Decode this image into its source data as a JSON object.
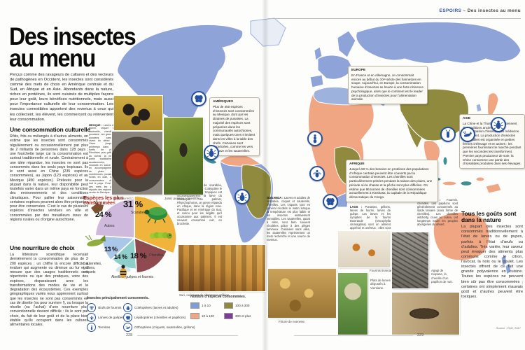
{
  "header": {
    "section": "ESPOIRS",
    "rest": " – Des insectes au menu"
  },
  "page": {
    "left_number": "228",
    "right_number": "229",
    "source": "Source : FAO, 2017"
  },
  "article": {
    "title_line1": "Des insectes",
    "title_line2": "au menu",
    "intro": "Perçus comme des ravageurs de cultures et des vecteurs de pathogènes en Occident, les insectes sont considérés comme des mets de choix en Amérique centrale et du Sud, en Afrique et en Asie. Abondants dans la nature, riches en protéines, ils sont cuisinés de multiples façons pour leur goût, leurs bénéfices nutritionnels, mais aussi pour l’importance culturelle de leur consommation. Les insectes comestibles apportent des revenus à ceux qui les collectent, les élèvent, les commercent ou réinventent leur consommation.",
    "sections": [
      {
        "heading": "Une consommation culturelle",
        "body": "Rôtis, frits ou mélangés à d’autres aliments, on estime que les insectes sont consommés régulièrement ou occasionnellement par plus de 2 milliards de personnes dans 128 pays ; une fourchette large car la consommation est surtout traditionnelle et rurale. Contrairement à une idée répandue, les insectes ne sont pas consommés dans les seuls pays tropicaux. Ils le sont aussi en Chine (235 espèces consommées), au Japon (123 espèces) et au Mexique (450 espèces). Prélevés pour la plupart dans la nature, leur disponibilité peut toutefois varier dans un même pays en fonction des environnements et des conditions climatiques. Pour pallier leur saisonnalité, certaines espèces peuvent alors être préparées pour être conservées. C’est le cas de plusieurs espèces d’insectes vendues en ville et consommées par des travailleurs issus de régions rurales ou d’origine autochtone."
      },
      {
        "heading": "Une nourriture de choix",
        "body": "La littérature scientifique recensait dernièrement la consommation de plus de 2 200 espèces ; un chiffre là encore difficile à évaluer qui augmente ou diminue au fur et à mesure que des usages traditionnels sont répertoriés ou que des pratiques, voire des espèces, disparaissent avec les transformations des modes de vie et la dégradation des écosystèmes. Ces exemples géographiques variés nous apprennent surtout que les insectes ne sont pas consommés en cas de disette (ou pour survivre !), ou lorsque la récolte (ou l’achat) d’une nourriture plus conventionnelle devient difficile : ils le sont par choix, du fait de leur goût et de la place bien établie qu’ils occupent dans les cultures alimentaires locales."
      }
    ]
  },
  "callouts": {
    "ameriques": {
      "title": "AMÉRIQUES",
      "body": "Plus de 450 espèces d’insectes sont consommées au Mexique, dont par les dizaines de punaises. La majorité des espèces sont préparées dans les communautés autochtones, mais quelques-unes s’invitent dans les villes à la table des chefs. Certaines sont appréciées, comme les vers d’agave et les sauterelles."
    },
    "europe": {
      "title": "EUROPE",
      "body": "En France et en Allemagne, on consommait encore au début du XXᵉ siècle des hannetons en soupe. Aujourd’hui, en Europe, la consommation humaine d’insectes se heurte à une forte réticence psychologique, alors que le continent est le leader de la production d’insectes pour l’alimentation animale."
    },
    "asie": {
      "title": "ASIE",
      "body": "La Chine et la Thaïlande maintiennent des traditions anciennes de consommation d’insectes, en médecine notamment. La production d’insectes comestibles est organisée en petites fermes d’élevage et en usines : les premières fournissant le marché pendant que les secondes les transforment. Premier pays producteur de soie, la Chine consomme une partie des chrysalides produites dans ses élevages."
    },
    "afrique": {
      "title": "AFRIQUE",
      "body": "Jusqu’à 50 % des besoins en protéines des populations d’Afrique centrale peuvent être couverts par la consommation d’insectes. Les chenilles sont particulièrement prisées pendant la saison des pluies, une période où la chasse et la pêche sont plus difficiles. On estime que 96 tonnes de chenilles sont consommées annuellement à Kinshasa, la capitale de la République démocratique du Congo."
    }
  },
  "country_notes": {
    "mexique": {
      "title": "MEXIQUE :",
      "body": "Larves de fourmi, criquet et sauterelle, chenilles, punaises. Les grandes punaises xamues vivent du début de l’hiver jusqu’au printemps dans les forêts de pins. Récoltées puis grillées au comal, la petite poêle traditionnelle, assaisonnées, moulues en sauce ou en accompagnement de plats, ces nombreuses punaises, riches en iode, sont consommées dans tout le pays. C’est un des mets les plus réputés des régions du centre du Mexique."
    },
    "perou": {
      "title": "PÉROU :",
      "body": "Larves de scarabée, chenilles, fourmis. Le Coléoptère le plus consommé des tropiques est incontestablement la larve du charançon du palmier, Rhynchophorus, un genre répandu en Afrique, dans la région Asie-Pacifique et en Amérique du Sud, et connu pour les dégâts qu’il occasionne aux palmiers. Il est souvent consommé cuit, en brochette."
    },
    "ouganda": {
      "title": "OUGANDA :",
      "body": "Larves et adultes de scarabée, criquet et sauterelle, chenilles. Les criquets sont en général récoltés le matin lorsque la température est plus faible et les insectes relativement immobiles. Les sauterelles, quant à elles, sont bien souvent récoltées grâce à des pièges lumineux. Cuisinées sans ailes, les sauterelles représentent un mets recherché et une source de revenus."
    },
    "laos": {
      "title": "LAOS :",
      "body": "Punaises, grillons, larves de fourmi, larves de guêpe. Les larves et les nymphes de la fourmi tisserande (Oecophylla smaragdina) sont un aliment apprécié et onéreux : elles sont saisonnières et le pays les exporte en faibles quantités."
    },
    "australie": {
      "title": "AUSTRALIE :",
      "body": "Fourmis, chenilles. Les papillons sont généralement consommés au stade larvaire (sous forme de chenilles). Les chenilles witchetty, crues ou cuites, ont longtemps nourri les peuples aborigènes du désert."
    }
  },
  "sidebar": {
    "heading": "Tous les goûts sont dans la nature",
    "body": "La plupart des insectes sont consommés traditionnellement à l’état de larves ou de pupes, parfois à l’état d’œufs ou d’adultes. Très variée, leur saveur peut évoquer des aliments plus communs comme le citron, l’avocat, la noix ou le poulet. Les insectes offrent de ce fait une grande polyvalence en cuisine. Toutes les espèces ne peuvent bien sûr pas être consommées ; certaines ont simplement mauvais goût et d’autres peuvent être toxiques."
  },
  "photo_captions": {
    "molcajete": "Salsa en préparation.",
    "jumil": "Jumil, punaise comestible.",
    "suri": "Suri, ou larves de charançon grillées.",
    "nsenene": "Friture de nsenene.",
    "fourmis": "Fourmis tisserandes.",
    "plats": "Plats de larves dégustés à Vientiane.",
    "mopane": "Agagi de mopane, la chenille d’un papillon de nuit."
  },
  "chart_data": {
    "type": "pie",
    "title": "Espèces les plus consommées",
    "unit": "%",
    "slices": [
      {
        "label": "Scarabées",
        "value": 31,
        "pct": "31 %",
        "color": "#f0b43c"
      },
      {
        "label": "Chenilles",
        "value": 18,
        "pct": "18 %",
        "color": "#8e4a4f"
      },
      {
        "label": "Abeilles, guêpes et fourmis",
        "value": 14,
        "pct": "14 %",
        "color": "#8ecfcb"
      },
      {
        "label": "Sauterelles, grillons, criquets",
        "value": 13,
        "pct": "13 %",
        "color": "#a9c7e8"
      },
      {
        "label": "Autres",
        "value": 24,
        "pct": "24 %",
        "color": "#cfb9dc"
      }
    ]
  },
  "legends": {
    "insects": {
      "title": "Insectes principalement consommés.",
      "items": [
        {
          "icon": "ant-eggs-icon",
          "label": "Œufs de fourmis"
        },
        {
          "icon": "wasp-larvae-icon",
          "label": "Larves de guêpes"
        },
        {
          "icon": "termites-icon",
          "label": "Termites"
        },
        {
          "icon": "beetle-icon",
          "label": "Coléoptères (larves et adultes)"
        },
        {
          "icon": "butterfly-icon",
          "label": "Lépidoptères (chenilles et papillons)"
        },
        {
          "icon": "grasshopper-icon",
          "label": "Orthoptères (criquets, sauterelles, grillons)"
        }
      ]
    },
    "species": {
      "title": "Nombre d’espèces consommées.",
      "items": [
        {
          "label": "1 à 10",
          "color": "#7f9fd4"
        },
        {
          "label": "10 à 100",
          "color": "#f0a583"
        },
        {
          "label": "100 à 300",
          "color": "#8f8a3d"
        },
        {
          "label": "300 et plus",
          "color": "#7d3e9b"
        }
      ]
    }
  }
}
